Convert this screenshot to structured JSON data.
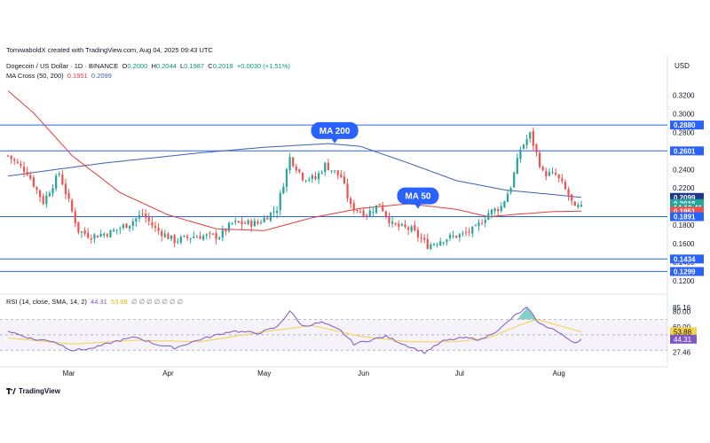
{
  "header": {
    "credit": "TomiwaboldX created with TradingView.com, Aug 04, 2025 09:43 UTC",
    "symbol": "Dogecoin / US Dollar · 1D · BINANCE",
    "open_label": "O",
    "open": "0.2000",
    "high_label": "H",
    "high": "0.2044",
    "low_label": "L",
    "low": "0.1987",
    "close_label": "C",
    "close": "0.2018",
    "change": "+0.0030 (+1.51%)",
    "ma_label": "MA Cross (50, 200)",
    "ma50_value": "0.1951",
    "ma200_value": "0.2099",
    "rsi_label": "RSI (14, close, SMA, 14, 2)",
    "rsi_value": "44.31",
    "rsi_ma_value": "53.88",
    "rsi_extra": "∅ ∅ ∅ ∅ ∅ ∅ ∅"
  },
  "branding": {
    "logo_text": "TradingView"
  },
  "colors": {
    "up": "#26a69a",
    "down": "#ef5350",
    "ma50": "#e53935",
    "ma200": "#3f5fb5",
    "hline": "#2962ff",
    "rsi": "#7e57c2",
    "rsi_ma": "#f5d14a",
    "badge_blue": "#2962ff"
  },
  "chart_data": {
    "type": "candlestick",
    "currency": "USD",
    "timeframe": "1D",
    "x_labels": [
      "Mar",
      "Apr",
      "May",
      "Jun",
      "Jul",
      "Aug"
    ],
    "y_ticks": [
      "0.3200",
      "0.3000",
      "0.2800",
      "0.2600",
      "0.2400",
      "0.2200",
      "0.2000",
      "0.1800",
      "0.1600",
      "0.1400",
      "0.1200"
    ],
    "ylim": [
      0.115,
      0.335
    ],
    "horizontal_levels": [
      0.288,
      0.2601,
      0.1891,
      0.1434,
      0.1299
    ],
    "price_badges": [
      {
        "text": "0.2880",
        "value": 0.288,
        "style": "blue"
      },
      {
        "text": "0.2601",
        "value": 0.2601,
        "style": "blue"
      },
      {
        "text": "0.2099",
        "value": 0.2099,
        "style": "navy"
      },
      {
        "text": "0.2018",
        "value": 0.2018,
        "style": "teal"
      },
      {
        "text": "14:16:41",
        "value": 0.1985,
        "style": "teal"
      },
      {
        "text": "0.1951",
        "value": 0.1951,
        "style": "red"
      },
      {
        "text": "0.1891",
        "value": 0.1891,
        "style": "blue"
      },
      {
        "text": "0.1434",
        "value": 0.1434,
        "style": "blue"
      },
      {
        "text": "0.1299",
        "value": 0.1299,
        "style": "blue"
      }
    ],
    "annotations": [
      {
        "text": "MA 200",
        "anchor_day": 102,
        "value": 0.282
      },
      {
        "text": "MA 50",
        "anchor_day": 128,
        "value": 0.2115
      }
    ],
    "keyframes": [
      {
        "day": 0,
        "price": 0.255
      },
      {
        "day": 6,
        "price": 0.237
      },
      {
        "day": 11,
        "price": 0.205
      },
      {
        "day": 16,
        "price": 0.236
      },
      {
        "day": 22,
        "price": 0.174
      },
      {
        "day": 26,
        "price": 0.168
      },
      {
        "day": 32,
        "price": 0.172
      },
      {
        "day": 38,
        "price": 0.182
      },
      {
        "day": 42,
        "price": 0.192
      },
      {
        "day": 46,
        "price": 0.176
      },
      {
        "day": 52,
        "price": 0.163
      },
      {
        "day": 58,
        "price": 0.168
      },
      {
        "day": 66,
        "price": 0.168
      },
      {
        "day": 70,
        "price": 0.182
      },
      {
        "day": 78,
        "price": 0.182
      },
      {
        "day": 84,
        "price": 0.198
      },
      {
        "day": 88,
        "price": 0.253
      },
      {
        "day": 92,
        "price": 0.232
      },
      {
        "day": 96,
        "price": 0.23
      },
      {
        "day": 99,
        "price": 0.245
      },
      {
        "day": 104,
        "price": 0.232
      },
      {
        "day": 107,
        "price": 0.2
      },
      {
        "day": 112,
        "price": 0.192
      },
      {
        "day": 116,
        "price": 0.203
      },
      {
        "day": 120,
        "price": 0.18
      },
      {
        "day": 126,
        "price": 0.175
      },
      {
        "day": 131,
        "price": 0.158
      },
      {
        "day": 136,
        "price": 0.165
      },
      {
        "day": 142,
        "price": 0.17
      },
      {
        "day": 146,
        "price": 0.176
      },
      {
        "day": 150,
        "price": 0.193
      },
      {
        "day": 154,
        "price": 0.2
      },
      {
        "day": 157,
        "price": 0.222
      },
      {
        "day": 160,
        "price": 0.262
      },
      {
        "day": 163,
        "price": 0.278
      },
      {
        "day": 167,
        "price": 0.236
      },
      {
        "day": 171,
        "price": 0.234
      },
      {
        "day": 173,
        "price": 0.224
      },
      {
        "day": 175,
        "price": 0.212
      },
      {
        "day": 177,
        "price": 0.197
      },
      {
        "day": 179,
        "price": 0.2018
      }
    ],
    "ma200_keyframes": [
      {
        "day": 0,
        "price": 0.233
      },
      {
        "day": 30,
        "price": 0.247
      },
      {
        "day": 60,
        "price": 0.258
      },
      {
        "day": 80,
        "price": 0.264
      },
      {
        "day": 100,
        "price": 0.268
      },
      {
        "day": 110,
        "price": 0.265
      },
      {
        "day": 125,
        "price": 0.247
      },
      {
        "day": 140,
        "price": 0.228
      },
      {
        "day": 155,
        "price": 0.218
      },
      {
        "day": 170,
        "price": 0.213
      },
      {
        "day": 179,
        "price": 0.2099
      }
    ],
    "ma50_keyframes": [
      {
        "day": 0,
        "price": 0.325
      },
      {
        "day": 8,
        "price": 0.301
      },
      {
        "day": 20,
        "price": 0.255
      },
      {
        "day": 35,
        "price": 0.215
      },
      {
        "day": 50,
        "price": 0.191
      },
      {
        "day": 65,
        "price": 0.176
      },
      {
        "day": 80,
        "price": 0.174
      },
      {
        "day": 95,
        "price": 0.188
      },
      {
        "day": 110,
        "price": 0.198
      },
      {
        "day": 125,
        "price": 0.203
      },
      {
        "day": 140,
        "price": 0.197
      },
      {
        "day": 150,
        "price": 0.189
      },
      {
        "day": 160,
        "price": 0.192
      },
      {
        "day": 170,
        "price": 0.1945
      },
      {
        "day": 179,
        "price": 0.1951
      }
    ],
    "rsi": {
      "ylim": [
        20,
        90
      ],
      "overbought": 70,
      "oversold": 30,
      "y_ticks": [
        {
          "text": "85.16",
          "value": 85.16
        },
        {
          "text": "80.00",
          "value": 80
        },
        {
          "text": "60.00",
          "value": 60
        },
        {
          "text": "53.88",
          "value": 53.88,
          "badge": "yellow"
        },
        {
          "text": "44.31",
          "value": 44.31,
          "badge": "purple"
        },
        {
          "text": "27.46",
          "value": 27.46
        }
      ],
      "keyframes": [
        {
          "day": 0,
          "value": 55
        },
        {
          "day": 8,
          "value": 44
        },
        {
          "day": 14,
          "value": 42
        },
        {
          "day": 20,
          "value": 30
        },
        {
          "day": 26,
          "value": 32
        },
        {
          "day": 34,
          "value": 42
        },
        {
          "day": 40,
          "value": 47
        },
        {
          "day": 46,
          "value": 38
        },
        {
          "day": 52,
          "value": 33
        },
        {
          "day": 60,
          "value": 44
        },
        {
          "day": 70,
          "value": 55
        },
        {
          "day": 78,
          "value": 52
        },
        {
          "day": 84,
          "value": 60
        },
        {
          "day": 88,
          "value": 81
        },
        {
          "day": 92,
          "value": 61
        },
        {
          "day": 98,
          "value": 66
        },
        {
          "day": 104,
          "value": 55
        },
        {
          "day": 108,
          "value": 38
        },
        {
          "day": 114,
          "value": 44
        },
        {
          "day": 118,
          "value": 48
        },
        {
          "day": 124,
          "value": 37
        },
        {
          "day": 130,
          "value": 27
        },
        {
          "day": 136,
          "value": 42
        },
        {
          "day": 142,
          "value": 46
        },
        {
          "day": 148,
          "value": 44
        },
        {
          "day": 154,
          "value": 59
        },
        {
          "day": 158,
          "value": 74
        },
        {
          "day": 162,
          "value": 85
        },
        {
          "day": 166,
          "value": 64
        },
        {
          "day": 170,
          "value": 58
        },
        {
          "day": 174,
          "value": 47
        },
        {
          "day": 177,
          "value": 40
        },
        {
          "day": 179,
          "value": 44.31
        }
      ],
      "ma_keyframes": [
        {
          "day": 0,
          "value": 46
        },
        {
          "day": 20,
          "value": 38
        },
        {
          "day": 40,
          "value": 43
        },
        {
          "day": 60,
          "value": 41
        },
        {
          "day": 80,
          "value": 54
        },
        {
          "day": 95,
          "value": 62
        },
        {
          "day": 110,
          "value": 48
        },
        {
          "day": 125,
          "value": 41
        },
        {
          "day": 140,
          "value": 41
        },
        {
          "day": 150,
          "value": 46
        },
        {
          "day": 160,
          "value": 63
        },
        {
          "day": 165,
          "value": 70
        },
        {
          "day": 172,
          "value": 62
        },
        {
          "day": 179,
          "value": 53.88
        }
      ]
    },
    "x_label_days": [
      19,
      50,
      80,
      111,
      141,
      172
    ]
  }
}
